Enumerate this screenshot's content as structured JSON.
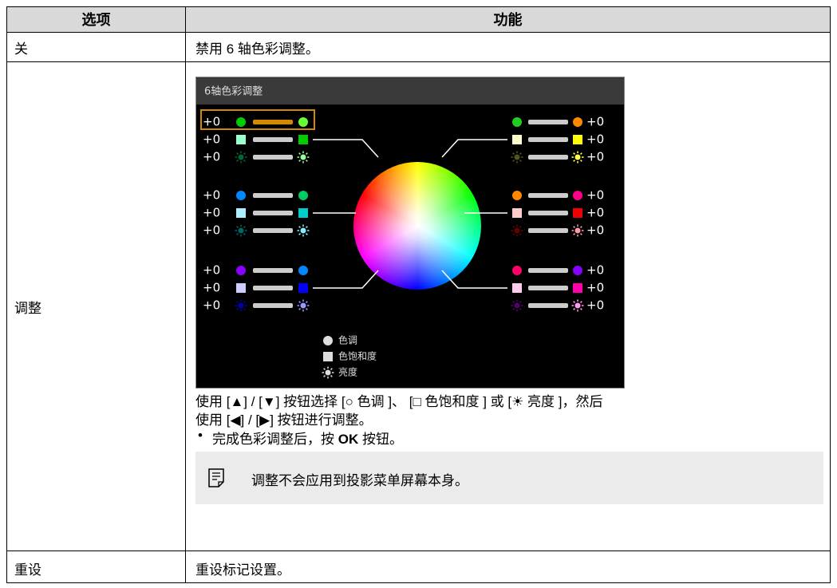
{
  "table": {
    "headers": [
      "选项",
      "功能"
    ],
    "rows": [
      {
        "option": "关",
        "function": "禁用 6 轴色彩调整。"
      },
      {
        "option": "调整",
        "screen": {
          "title": "6轴色彩调整",
          "left_values": [
            "+0",
            "+0",
            "+0",
            "+0",
            "+0",
            "+0",
            "+0",
            "+0",
            "+0"
          ],
          "right_values": [
            "+0",
            "+0",
            "+0",
            "+0",
            "+0",
            "+0",
            "+0",
            "+0",
            "+0"
          ],
          "legend": [
            "色调",
            "色饱和度",
            "亮度"
          ]
        },
        "instructions": [
          "使用 [▲] / [▼] 按钮选择 [○ 色调 ]、 [□ 色饱和度 ] 或 [☀ 亮度 ]，然后",
          "使用 [◀] / [▶] 按钮进行调整。"
        ],
        "bullet": [
          "完成色彩调整后，按 ",
          "OK",
          " 按钮。"
        ],
        "note": "调整不会应用到投影菜单屏幕本身。"
      },
      {
        "option": "重设",
        "function": "重设标记设置。"
      }
    ]
  }
}
